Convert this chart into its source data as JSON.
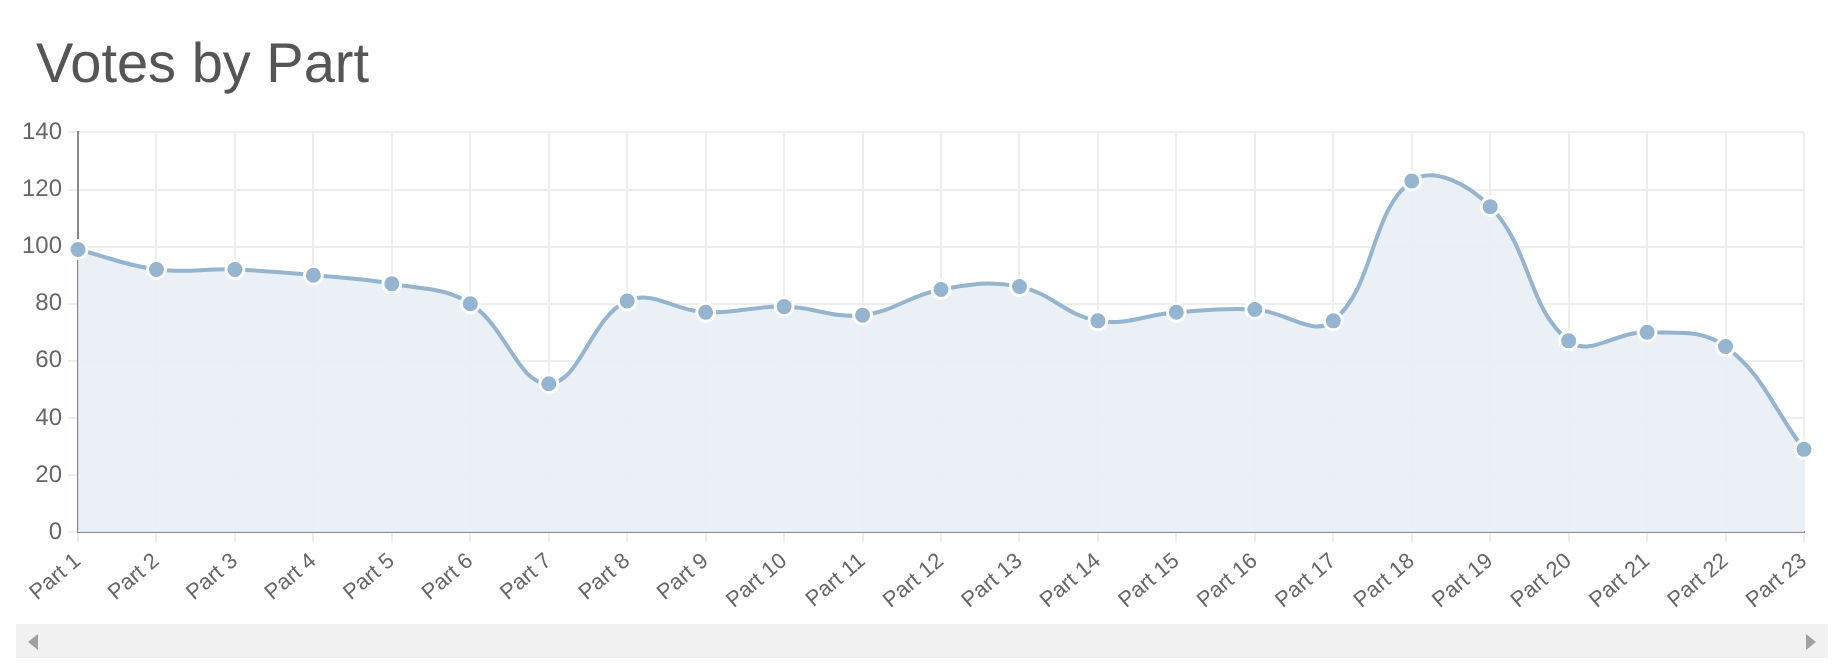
{
  "chart_data": {
    "type": "area",
    "title": "Votes by Part",
    "categories": [
      "Part 1",
      "Part 2",
      "Part 3",
      "Part 4",
      "Part 5",
      "Part 6",
      "Part 7",
      "Part 8",
      "Part 9",
      "Part 10",
      "Part 11",
      "Part 12",
      "Part 13",
      "Part 14",
      "Part 15",
      "Part 16",
      "Part 17",
      "Part 18",
      "Part 19",
      "Part 20",
      "Part 21",
      "Part 22",
      "Part 23"
    ],
    "series": [
      {
        "color": "#94b4cf",
        "values": [
          99,
          92,
          92,
          90,
          87,
          80,
          52,
          81,
          77,
          79,
          76,
          85,
          86,
          74,
          77,
          78,
          74,
          123,
          114,
          67,
          70,
          65,
          29
        ]
      }
    ],
    "ylim": [
      0,
      140
    ],
    "yticks": [
      0,
      20,
      40,
      60,
      80,
      100,
      120,
      140
    ],
    "grid": true,
    "legend": false,
    "marker": "circle"
  }
}
